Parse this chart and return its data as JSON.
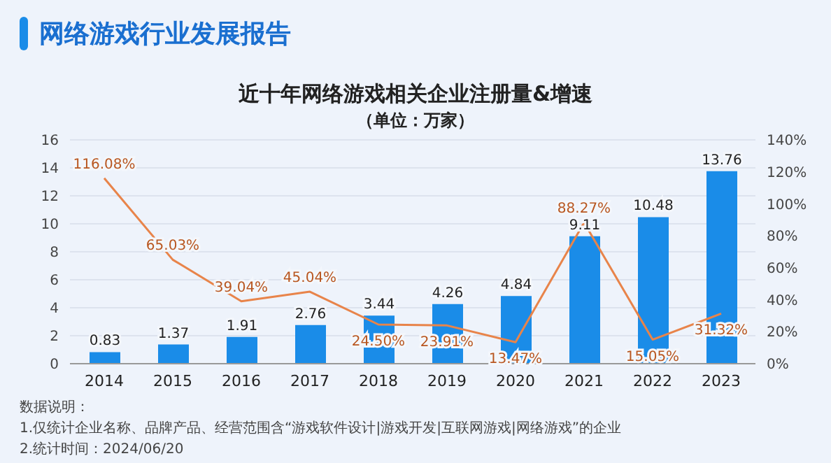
{
  "chart_data": {
    "type": "bar",
    "title": "近十年网络游戏相关企业注册量&增速",
    "subtitle": "（单位：万家）",
    "annotations": [
      "网络游戏行业发展报告",
      "数据说明：",
      "1.仅统计企业名称、品牌产品、经营范围含“游戏软件设计|游戏开发|互联网游戏|网络游戏”的企业",
      "2.统计时间：2024/06/20"
    ],
    "categories": [
      "2014",
      "2015",
      "2016",
      "2017",
      "2018",
      "2019",
      "2020",
      "2021",
      "2022",
      "2023"
    ],
    "series": [
      {
        "color": "#1a8ce8",
        "values": [
          0.83,
          1.37,
          1.91,
          2.76,
          3.44,
          4.26,
          4.84,
          9.11,
          10.48,
          13.76
        ],
        "value_labels": [
          "0.83",
          "1.37",
          "1.91",
          "2.76",
          "3.44",
          "4.26",
          "4.84",
          "9.11",
          "10.48",
          "13.76"
        ]
      },
      {
        "type": "line",
        "axis": "y2",
        "color": "#e8844a",
        "values": [
          116.08,
          65.03,
          39.04,
          45.04,
          24.5,
          23.91,
          13.47,
          88.27,
          15.05,
          31.32
        ],
        "value_labels": [
          "116.08%",
          "65.03%",
          "39.04%",
          "45.04%",
          "24.50%",
          "23.91%",
          "13.47%",
          "88.27%",
          "15.05%",
          "31.32%"
        ]
      }
    ],
    "ylim": [
      0,
      16
    ],
    "yticks": [
      0,
      2,
      4,
      6,
      8,
      10,
      12,
      14,
      16
    ],
    "y2lim": [
      0,
      140
    ],
    "y2ticks": [
      {
        "value": 0,
        "label": "0%"
      },
      {
        "value": 20,
        "label": "20%"
      },
      {
        "value": 40,
        "label": "40%"
      },
      {
        "value": 60,
        "label": "60%"
      },
      {
        "value": 80,
        "label": "80%"
      },
      {
        "value": 100,
        "label": "100%"
      },
      {
        "value": 120,
        "label": "120%"
      },
      {
        "value": 140,
        "label": "140%"
      }
    ],
    "grid": "y",
    "marker": "none"
  }
}
